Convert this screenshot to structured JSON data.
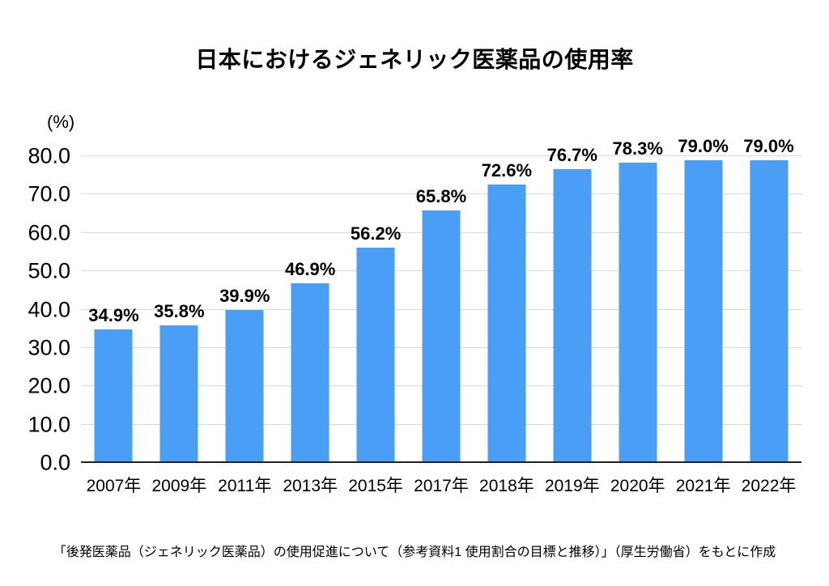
{
  "chart_data": {
    "type": "bar",
    "title": "日本におけるジェネリック医薬品の使用率",
    "unit_label": "(%)",
    "categories": [
      "2007年",
      "2009年",
      "2011年",
      "2013年",
      "2015年",
      "2017年",
      "2018年",
      "2019年",
      "2020年",
      "2021年",
      "2022年"
    ],
    "values": [
      34.9,
      35.8,
      39.9,
      46.9,
      56.2,
      65.8,
      72.6,
      76.7,
      78.3,
      79.0,
      79.0
    ],
    "value_labels": [
      "34.9%",
      "35.8%",
      "39.9%",
      "46.9%",
      "56.2%",
      "65.8%",
      "72.6%",
      "76.7%",
      "78.3%",
      "79.0%",
      "79.0%"
    ],
    "value_label_suffix": "%",
    "ylim": [
      0,
      80
    ],
    "ytick_step": 10,
    "ytick_labels": [
      "0.0",
      "10.0",
      "20.0",
      "30.0",
      "40.0",
      "50.0",
      "60.0",
      "70.0",
      "80.0"
    ],
    "grid": "horizontal-light",
    "legend": "none",
    "bar_color": "#4A9EF5",
    "gridline_color": "#D9D9D9",
    "baseline_color": "#222222",
    "text_color": "#000000",
    "source_note": "「後発医薬品（ジェネリック医薬品）の使用促進について（参考資料1 使用割合の目標と推移）」（厚生労働省）をもとに作成"
  }
}
